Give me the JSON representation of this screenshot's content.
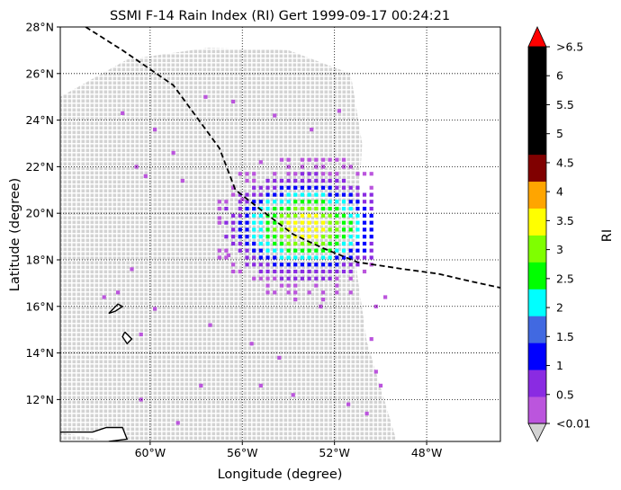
{
  "chart_data": {
    "type": "heatmap",
    "title": "SSMI F-14 Rain Index (RI) Gert 1999-09-17 00:24:21",
    "xlabel": "Longitude (degree)",
    "ylabel": "Latitude (degree)",
    "xlim": [
      -63.9,
      -44.8
    ],
    "ylim": [
      10.2,
      28.0
    ],
    "grid": true,
    "x_ticks": [
      {
        "value": -60,
        "label": "60°W"
      },
      {
        "value": -56,
        "label": "56°W"
      },
      {
        "value": -52,
        "label": "52°W"
      },
      {
        "value": -48,
        "label": "48°W"
      }
    ],
    "y_ticks": [
      {
        "value": 12,
        "label": "12°N"
      },
      {
        "value": 14,
        "label": "14°N"
      },
      {
        "value": 16,
        "label": "16°N"
      },
      {
        "value": 18,
        "label": "18°N"
      },
      {
        "value": 20,
        "label": "20°N"
      },
      {
        "value": 22,
        "label": "22°N"
      },
      {
        "value": 24,
        "label": "24°N"
      },
      {
        "value": 26,
        "label": "26°N"
      },
      {
        "value": 28,
        "label": "28°N"
      }
    ],
    "swath": {
      "color": "#d3d3d3",
      "polygon": [
        [
          -63.9,
          25.0
        ],
        [
          -61.0,
          26.6
        ],
        [
          -57.5,
          27.1
        ],
        [
          -54.0,
          27.0
        ],
        [
          -51.3,
          26.0
        ],
        [
          -50.8,
          23.0
        ],
        [
          -51.1,
          18.0
        ],
        [
          -50.6,
          14.5
        ],
        [
          -49.3,
          10.2
        ],
        [
          -63.9,
          10.2
        ]
      ]
    },
    "storm_track": [
      [
        -62.8,
        28.0
      ],
      [
        -61.2,
        27.0
      ],
      [
        -59.0,
        25.5
      ],
      [
        -57.0,
        22.8
      ],
      [
        -56.3,
        21.0
      ],
      [
        -55.0,
        20.0
      ],
      [
        -53.8,
        19.1
      ],
      [
        -52.5,
        18.5
      ],
      [
        -51.0,
        17.9
      ],
      [
        -49.0,
        17.6
      ],
      [
        -47.5,
        17.4
      ],
      [
        -46.2,
        17.1
      ],
      [
        -44.8,
        16.8
      ]
    ],
    "coastlines": [
      [
        [
          -61.8,
          15.7
        ],
        [
          -61.4,
          16.1
        ],
        [
          -61.2,
          16.0
        ],
        [
          -61.5,
          15.8
        ],
        [
          -61.8,
          15.7
        ]
      ],
      [
        [
          -61.1,
          14.9
        ],
        [
          -60.8,
          14.6
        ],
        [
          -61.0,
          14.4
        ],
        [
          -61.2,
          14.7
        ],
        [
          -61.1,
          14.9
        ]
      ],
      [
        [
          -63.9,
          10.6
        ],
        [
          -62.5,
          10.6
        ],
        [
          -61.9,
          10.8
        ],
        [
          -61.2,
          10.8
        ],
        [
          -61.0,
          10.3
        ],
        [
          -61.8,
          10.2
        ]
      ]
    ],
    "rain_field": {
      "center": [
        -53.2,
        19.4
      ],
      "description_levels": "RI values per cell shown in colorbar bins",
      "scattered_cells": [
        [
          -60.6,
          22.0
        ],
        [
          -60.2,
          21.6
        ],
        [
          -59.0,
          22.6
        ],
        [
          -58.6,
          21.4
        ],
        [
          -61.2,
          24.3
        ],
        [
          -59.8,
          23.6
        ],
        [
          -57.6,
          25.0
        ],
        [
          -56.4,
          24.8
        ],
        [
          -55.2,
          22.2
        ],
        [
          -54.6,
          24.2
        ],
        [
          -53.0,
          23.6
        ],
        [
          -51.8,
          24.4
        ],
        [
          -62.0,
          16.4
        ],
        [
          -61.4,
          16.6
        ],
        [
          -60.8,
          17.6
        ],
        [
          -60.4,
          14.8
        ],
        [
          -59.8,
          15.9
        ],
        [
          -57.4,
          15.2
        ],
        [
          -55.6,
          14.4
        ],
        [
          -54.4,
          13.8
        ],
        [
          -53.8,
          12.2
        ],
        [
          -51.4,
          11.8
        ],
        [
          -50.6,
          11.4
        ],
        [
          -50.4,
          14.6
        ],
        [
          -50.2,
          16.0
        ],
        [
          -49.8,
          16.4
        ],
        [
          -52.6,
          16.0
        ],
        [
          -55.2,
          12.6
        ],
        [
          -57.8,
          12.6
        ],
        [
          -60.4,
          12.0
        ],
        [
          -58.8,
          11.0
        ],
        [
          -50.2,
          13.2
        ],
        [
          -50.0,
          12.6
        ],
        [
          -56.0,
          20.6
        ],
        [
          -57.0,
          19.8
        ],
        [
          -56.6,
          18.2
        ]
      ]
    },
    "colorbar": {
      "label": "RI",
      "bins": [
        {
          "color": "#bb55dd"
        },
        {
          "color": "#8a2be2"
        },
        {
          "color": "#0000ff"
        },
        {
          "color": "#4169e1"
        },
        {
          "color": "#00ffff"
        },
        {
          "color": "#00ff00"
        },
        {
          "color": "#7fff00"
        },
        {
          "color": "#ffff00"
        },
        {
          "color": "#ffa500"
        },
        {
          "color": "#800000"
        },
        {
          "color": "#000000"
        },
        {
          "color": "#000000"
        },
        {
          "color": "#000000"
        },
        {
          "color": "#000000"
        }
      ],
      "under_color": "#d3d3d3",
      "over_color": "#ff0000",
      "tick_labels": [
        ">6.5",
        "6",
        "5.5",
        "5",
        "4.5",
        "4",
        "3.5",
        "3",
        "2.5",
        "2",
        "1.5",
        "1",
        "0.5",
        "<0.01"
      ]
    }
  }
}
